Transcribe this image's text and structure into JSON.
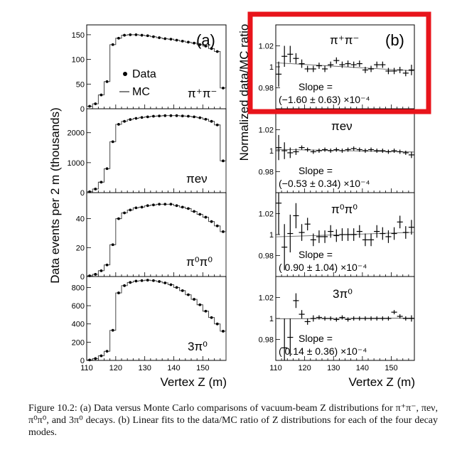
{
  "left": {
    "label": "(a)",
    "ylabel": "Data events per 2 m (thousands)",
    "xlabel": "Vertex Z (m)",
    "legend": {
      "data": "Data",
      "mc": "MC"
    },
    "panels": [
      {
        "mode": "π⁺π⁻",
        "yticks": [
          "0",
          "50",
          "100",
          "150"
        ],
        "ylim": [
          0,
          170
        ]
      },
      {
        "mode": "πeν",
        "yticks": [
          "0",
          "1000",
          "2000"
        ],
        "ylim": [
          0,
          2800
        ]
      },
      {
        "mode": "π⁰π⁰",
        "yticks": [
          "0",
          "20",
          "40"
        ],
        "ylim": [
          0,
          58
        ]
      },
      {
        "mode": "3π⁰",
        "yticks": [
          "0",
          "200",
          "400",
          "600",
          "800"
        ],
        "ylim": [
          0,
          920
        ]
      }
    ]
  },
  "right": {
    "label": "(b)",
    "ylabel": "Normalized data/MC ratio",
    "xlabel": "Vertex Z (m)",
    "slope_label": "Slope =",
    "yticks": [
      "0.98",
      "1",
      "1.02"
    ],
    "panels": [
      {
        "mode": "π⁺π⁻",
        "slope": "(−1.60 ± 0.63) ×10⁻⁴"
      },
      {
        "mode": "πeν",
        "slope": "(−0.53 ± 0.34) ×10⁻⁴"
      },
      {
        "mode": "π⁰π⁰",
        "slope": "( 0.90 ± 1.04) ×10⁻⁴"
      },
      {
        "mode": "3π⁰",
        "slope": "( 0.14 ± 0.36) ×10⁻⁴"
      }
    ]
  },
  "xticks": [
    "110",
    "120",
    "130",
    "140",
    "150"
  ],
  "caption": "Figure 10.2: (a) Data versus Monte Carlo comparisons of vacuum-beam Z distributions for π⁺π⁻, πeν, π⁰π⁰, and 3π⁰ decays. (b) Linear fits to the data/MC ratio of Z distributions for each of the four decay modes.",
  "highlight_color": "#e8141b",
  "chart_data": [
    {
      "type": "scatter",
      "title": "",
      "xlabel": "Vertex Z (m)",
      "ylabel": "Data events per 2 m (thousands)",
      "xlim": [
        110,
        158
      ],
      "ylim": [
        0,
        170
      ],
      "x": [
        111,
        113,
        115,
        117,
        119,
        121,
        123,
        125,
        127,
        129,
        131,
        133,
        135,
        137,
        139,
        141,
        143,
        145,
        147,
        149,
        151,
        153,
        155,
        157
      ],
      "series": [
        {
          "name": "Data",
          "values": [
            5,
            10,
            28,
            55,
            130,
            143,
            149,
            150,
            150,
            149,
            148,
            146,
            144,
            142,
            141,
            139,
            137,
            135,
            133,
            130,
            127,
            122,
            116,
            42
          ]
        },
        {
          "name": "MC",
          "values": [
            5,
            10,
            28,
            55,
            130,
            143,
            149,
            150,
            150,
            149,
            148,
            146,
            144,
            142,
            141,
            139,
            137,
            135,
            133,
            130,
            127,
            122,
            116,
            42
          ]
        }
      ]
    },
    {
      "type": "scatter",
      "title": "",
      "xlabel": "Vertex Z (m)",
      "ylabel": "Data events per 2 m (thousands)",
      "xlim": [
        110,
        158
      ],
      "ylim": [
        0,
        2800
      ],
      "x": [
        111,
        113,
        115,
        117,
        119,
        121,
        123,
        125,
        127,
        129,
        131,
        133,
        135,
        137,
        139,
        141,
        143,
        145,
        147,
        149,
        151,
        153,
        155,
        157
      ],
      "series": [
        {
          "name": "Data",
          "values": [
            30,
            120,
            350,
            800,
            1700,
            2280,
            2380,
            2440,
            2480,
            2510,
            2530,
            2550,
            2560,
            2570,
            2570,
            2570,
            2560,
            2550,
            2530,
            2500,
            2450,
            2380,
            2260,
            1060
          ]
        },
        {
          "name": "MC",
          "values": [
            30,
            120,
            350,
            800,
            1700,
            2280,
            2380,
            2440,
            2480,
            2510,
            2530,
            2550,
            2560,
            2570,
            2570,
            2570,
            2560,
            2550,
            2530,
            2500,
            2450,
            2380,
            2260,
            1060
          ]
        }
      ]
    },
    {
      "type": "scatter",
      "title": "",
      "xlabel": "Vertex Z (m)",
      "ylabel": "Data events per 2 m (thousands)",
      "xlim": [
        110,
        158
      ],
      "ylim": [
        0,
        58
      ],
      "x": [
        111,
        113,
        115,
        117,
        119,
        121,
        123,
        125,
        127,
        129,
        131,
        133,
        135,
        137,
        139,
        141,
        143,
        145,
        147,
        149,
        151,
        153,
        155,
        157
      ],
      "series": [
        {
          "name": "Data",
          "values": [
            0.5,
            1.5,
            4,
            8,
            22,
            40,
            44,
            46,
            47.5,
            48,
            49,
            49.5,
            50,
            50,
            50,
            49,
            48,
            47,
            45,
            43,
            41,
            38,
            35,
            31
          ]
        },
        {
          "name": "MC",
          "values": [
            0.5,
            1.5,
            4,
            8,
            22,
            40,
            44,
            46,
            47.5,
            48,
            49,
            49.5,
            50,
            50,
            50,
            49,
            48,
            47,
            45,
            43,
            41,
            38,
            35,
            31
          ]
        }
      ]
    },
    {
      "type": "scatter",
      "title": "",
      "xlabel": "Vertex Z (m)",
      "ylabel": "Data events per 2 m (thousands)",
      "xlim": [
        110,
        158
      ],
      "ylim": [
        0,
        920
      ],
      "x": [
        111,
        113,
        115,
        117,
        119,
        121,
        123,
        125,
        127,
        129,
        131,
        133,
        135,
        137,
        139,
        141,
        143,
        145,
        147,
        149,
        151,
        153,
        155,
        157
      ],
      "series": [
        {
          "name": "Data",
          "values": [
            5,
            20,
            50,
            100,
            330,
            740,
            820,
            855,
            870,
            875,
            880,
            875,
            865,
            850,
            830,
            800,
            765,
            720,
            670,
            610,
            540,
            470,
            400,
            320
          ]
        },
        {
          "name": "MC",
          "values": [
            5,
            20,
            50,
            100,
            330,
            740,
            820,
            855,
            870,
            875,
            880,
            875,
            865,
            850,
            830,
            800,
            765,
            720,
            670,
            610,
            540,
            470,
            400,
            320
          ]
        }
      ]
    },
    {
      "type": "scatter",
      "title": "",
      "xlabel": "Vertex Z (m)",
      "ylabel": "Normalized data/MC ratio",
      "xlim": [
        110,
        158
      ],
      "ylim": [
        0.96,
        1.04
      ],
      "x": [
        111,
        113,
        115,
        117,
        119,
        121,
        123,
        125,
        127,
        129,
        131,
        133,
        135,
        137,
        139,
        141,
        143,
        145,
        147,
        149,
        151,
        153,
        155,
        157
      ],
      "values": [
        0.993,
        1.01,
        1.012,
        1.008,
        1.003,
        0.998,
        0.998,
        1.001,
        0.998,
        1.002,
        1.006,
        1.002,
        1.003,
        1.002,
        1.003,
        0.997,
        0.998,
        1.002,
        1.002,
        0.996,
        0.996,
        0.997,
        0.994,
        0.997
      ],
      "errors": [
        0.012,
        0.01,
        0.008,
        0.005,
        0.004,
        0.003,
        0.003,
        0.003,
        0.003,
        0.003,
        0.003,
        0.003,
        0.003,
        0.003,
        0.003,
        0.003,
        0.003,
        0.003,
        0.003,
        0.003,
        0.003,
        0.003,
        0.003,
        0.005
      ],
      "fit": {
        "slope_e4": -1.6,
        "error_e4": 0.63
      }
    },
    {
      "type": "scatter",
      "title": "",
      "xlabel": "Vertex Z (m)",
      "ylabel": "Normalized data/MC ratio",
      "xlim": [
        110,
        158
      ],
      "ylim": [
        0.96,
        1.04
      ],
      "x": [
        111,
        113,
        115,
        117,
        119,
        121,
        123,
        125,
        127,
        129,
        131,
        133,
        135,
        137,
        139,
        141,
        143,
        145,
        147,
        149,
        151,
        153,
        155,
        157
      ],
      "values": [
        1.003,
        1.0,
        0.998,
        0.999,
        1.003,
        1.001,
        0.999,
        1.0,
        1.001,
        1.0,
        1.001,
        1.0,
        1.001,
        1.002,
        1.001,
        1.0,
        1.001,
        1.0,
        1.0,
        0.999,
        1.0,
        0.999,
        0.998,
        0.996
      ],
      "errors": [
        0.012,
        0.008,
        0.005,
        0.003,
        0.002,
        0.002,
        0.002,
        0.002,
        0.002,
        0.002,
        0.002,
        0.002,
        0.002,
        0.002,
        0.002,
        0.002,
        0.002,
        0.002,
        0.002,
        0.002,
        0.002,
        0.002,
        0.002,
        0.003
      ],
      "fit": {
        "slope_e4": -0.53,
        "error_e4": 0.34
      }
    },
    {
      "type": "scatter",
      "title": "",
      "xlabel": "Vertex Z (m)",
      "ylabel": "Normalized data/MC ratio",
      "xlim": [
        110,
        158
      ],
      "ylim": [
        0.96,
        1.04
      ],
      "x": [
        111,
        113,
        115,
        117,
        119,
        121,
        123,
        125,
        127,
        129,
        131,
        133,
        135,
        137,
        139,
        141,
        143,
        145,
        147,
        149,
        151,
        153,
        155,
        157
      ],
      "values": [
        1.03,
        0.988,
        1.001,
        1.018,
        1.002,
        1.01,
        0.995,
        0.998,
        0.998,
        1.003,
        0.999,
        1.0,
        1.0,
        1.0,
        1.003,
        0.995,
        0.995,
        1.003,
        1.001,
        0.998,
        1.001,
        1.012,
        1.002,
        1.007
      ],
      "errors": [
        0.03,
        0.022,
        0.018,
        0.012,
        0.008,
        0.006,
        0.006,
        0.006,
        0.006,
        0.006,
        0.006,
        0.006,
        0.006,
        0.006,
        0.006,
        0.006,
        0.006,
        0.006,
        0.006,
        0.006,
        0.006,
        0.006,
        0.006,
        0.007
      ],
      "fit": {
        "slope_e4": 0.9,
        "error_e4": 1.04
      }
    },
    {
      "type": "scatter",
      "title": "",
      "xlabel": "Vertex Z (m)",
      "ylabel": "Normalized data/MC ratio",
      "xlim": [
        110,
        158
      ],
      "ylim": [
        0.96,
        1.04
      ],
      "x": [
        113,
        115,
        117,
        119,
        121,
        123,
        125,
        127,
        129,
        131,
        133,
        135,
        137,
        139,
        141,
        143,
        145,
        147,
        149,
        151,
        153,
        155,
        157
      ],
      "values": [
        0.972,
        0.982,
        1.017,
        1.004,
        0.997,
        1.0,
        1.001,
        1.0,
        1.0,
        0.999,
        1.001,
        0.999,
        1.0,
        1.0,
        1.0,
        1.0,
        1.0,
        1.0,
        1.0,
        1.006,
        1.002,
        1.0,
        1.0
      ],
      "errors": [
        0.028,
        0.018,
        0.007,
        0.004,
        0.003,
        0.003,
        0.002,
        0.002,
        0.002,
        0.002,
        0.002,
        0.002,
        0.002,
        0.002,
        0.002,
        0.002,
        0.002,
        0.002,
        0.002,
        0.002,
        0.002,
        0.002,
        0.003
      ],
      "fit": {
        "slope_e4": 0.14,
        "error_e4": 0.36
      }
    }
  ]
}
